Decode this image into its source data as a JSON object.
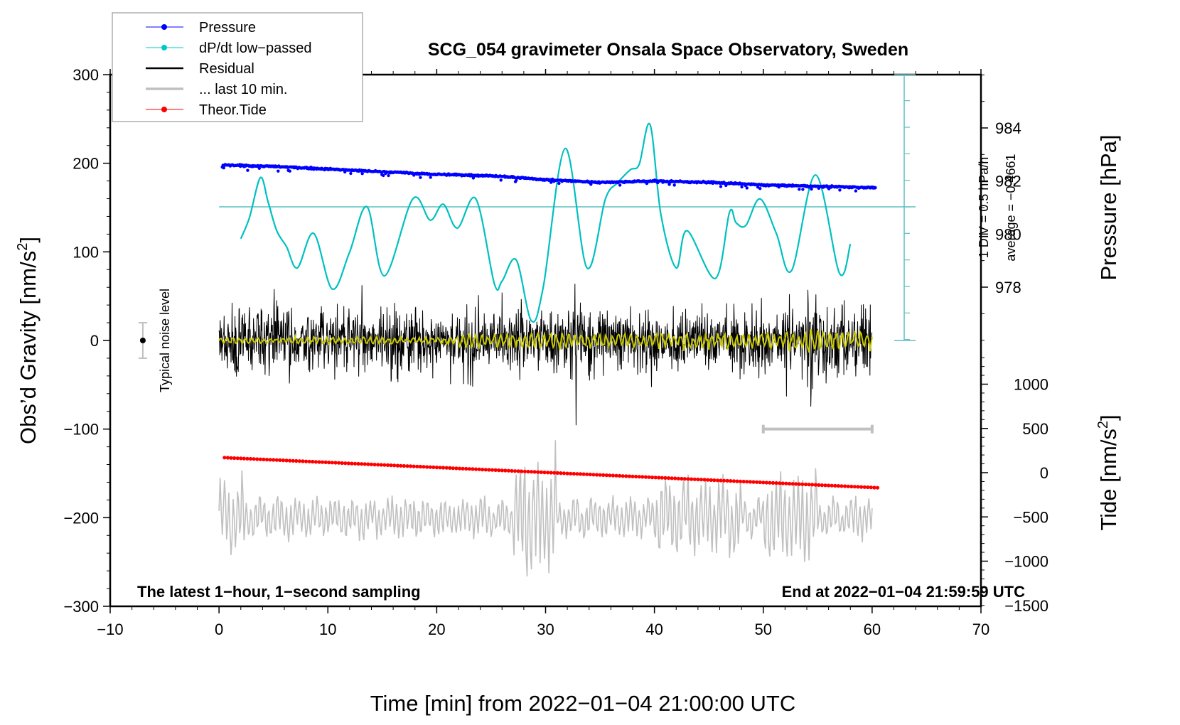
{
  "chart_data": {
    "type": "line",
    "title": "SCG_054 gravimeter Onsala Space Observatory, Sweden",
    "xlabel": "Time [min] from 2022−01−04 21:00:00 UTC",
    "ylabel_left": "Obs’d Gravity [nm/s²]",
    "ylabel_left_base": "Obs’d Gravity [nm/s",
    "ylabel_left_sup": "2",
    "ylabel_left_end": "]",
    "ylabel_pressure": "Pressure [hPa]",
    "ylabel_tide_base": "Tide [nm/s",
    "ylabel_tide_sup": "2",
    "ylabel_tide_end": "]",
    "xlim": [
      -10,
      70
    ],
    "ylim_left": [
      -300,
      300
    ],
    "ylim_pressure_ticks": [
      978,
      980,
      982,
      984
    ],
    "ylim_tide_ticks": [
      -1500,
      -1000,
      -500,
      0,
      500,
      1000
    ],
    "x_ticks": [
      "−10",
      "0",
      "10",
      "20",
      "30",
      "40",
      "50",
      "60",
      "70"
    ],
    "x_tick_values": [
      -10,
      0,
      10,
      20,
      30,
      40,
      50,
      60,
      70
    ],
    "y_left_ticks": [
      "−300",
      "−200",
      "−100",
      "0",
      "100",
      "200",
      "300"
    ],
    "y_left_tick_values": [
      -300,
      -200,
      -100,
      0,
      100,
      200,
      300
    ],
    "pressure_tick_labels": [
      "978",
      "980",
      "982",
      "984"
    ],
    "tide_tick_labels": [
      "−1500",
      "−1000",
      "−500",
      "0",
      "500",
      "1000"
    ],
    "annotations": {
      "bottom_left": "The latest 1−hour, 1−second sampling",
      "bottom_right": "End at 2022−01−04 21:59:59 UTC",
      "noise_label": "Typical noise level",
      "div_label": "1 DIV = 0.5 hPa/h",
      "average_label": "average = −0.4661"
    },
    "legend": {
      "position": "top-left",
      "entries": [
        {
          "label": "Pressure",
          "color": "#0000ff",
          "marker": true
        },
        {
          "label": "dP/dt low−passed",
          "color": "#00c8c8",
          "marker": true
        },
        {
          "label": "Residual",
          "color": "#000000",
          "marker": false
        },
        {
          "label": "... last 10 min.",
          "color": "#c0c0c0",
          "marker": false
        },
        {
          "label": "Theor.Tide",
          "color": "#ff0000",
          "marker": true
        }
      ]
    },
    "colors": {
      "pressure": "#0000ff",
      "dpdt": "#00c0c0",
      "dpdt_axis": "#5cc0c0",
      "residual": "#000000",
      "residual_filtered": "#c8c800",
      "last10": "#c0c0c0",
      "tide": "#ff0000",
      "noise_bar": "#c0c0c0"
    },
    "series": [
      {
        "name": "Pressure",
        "axis": "pressure_hPa",
        "x": [
          0.3,
          5,
          10,
          15,
          20,
          25,
          30,
          35,
          40,
          45,
          50,
          55,
          60.3
        ],
        "values": [
          982.6,
          982.55,
          982.45,
          982.35,
          982.25,
          982.2,
          982.05,
          981.95,
          982.0,
          981.95,
          981.85,
          981.8,
          981.75
        ]
      },
      {
        "name": "dP/dt low-passed",
        "axis": "dpdt_div",
        "note": "values in DIV units relative to average line (1 DIV = 0.5 hPa/h)",
        "x": [
          2.0,
          2.8,
          3.8,
          4.5,
          5.3,
          6.2,
          7.2,
          8.7,
          10.4,
          12.0,
          13.6,
          15.2,
          17.8,
          19.4,
          20.6,
          21.9,
          23.6,
          25.3,
          26.0,
          27.3,
          28.7,
          29.8,
          31.8,
          33.8,
          35.5,
          36.6,
          37.8,
          38.6,
          39.6,
          40.6,
          42.0,
          43.0,
          45.6,
          46.9,
          47.5,
          48.4,
          49.7,
          51.2,
          52.6,
          54.8,
          57.0,
          58.0
        ],
        "values": [
          -1.2,
          -0.4,
          1.1,
          0.2,
          -0.9,
          -1.5,
          -2.3,
          -1.0,
          -3.1,
          -1.7,
          0.0,
          -2.6,
          0.3,
          -0.5,
          0.1,
          -0.8,
          0.3,
          -2.9,
          -2.8,
          -2.0,
          -4.3,
          -3.0,
          2.2,
          -2.3,
          0.3,
          0.9,
          1.4,
          1.6,
          3.1,
          -0.3,
          -2.3,
          -0.9,
          -2.7,
          -0.2,
          -0.6,
          -0.7,
          0.3,
          -1.0,
          -2.4,
          1.2,
          -2.5,
          -1.4
        ]
      },
      {
        "name": "Residual",
        "axis": "gravity_nm_s2",
        "x_range": [
          0,
          60
        ],
        "amplitude_typical": 60,
        "amplitude_max": 105,
        "mean": 0
      },
      {
        "name": "Residual low-passed",
        "axis": "gravity_nm_s2",
        "x_range": [
          0,
          60
        ],
        "amplitude_typical": 5,
        "mean": 0
      },
      {
        "name": "... last 10 min.",
        "axis": "gravity_nm_s2_offset",
        "x_range": [
          0,
          60
        ],
        "baseline": -200,
        "amplitude_typical": 35,
        "amplitude_max": 90
      },
      {
        "name": "Theor.Tide",
        "axis": "tide_nm_s2",
        "x": [
          0.5,
          60.5
        ],
        "values": [
          170,
          -170
        ]
      }
    ],
    "noise_level": {
      "x": -7,
      "center": 0,
      "half_range": 20
    },
    "last10_marker": {
      "x_start": 50,
      "x_end": 60,
      "y": -100
    }
  }
}
